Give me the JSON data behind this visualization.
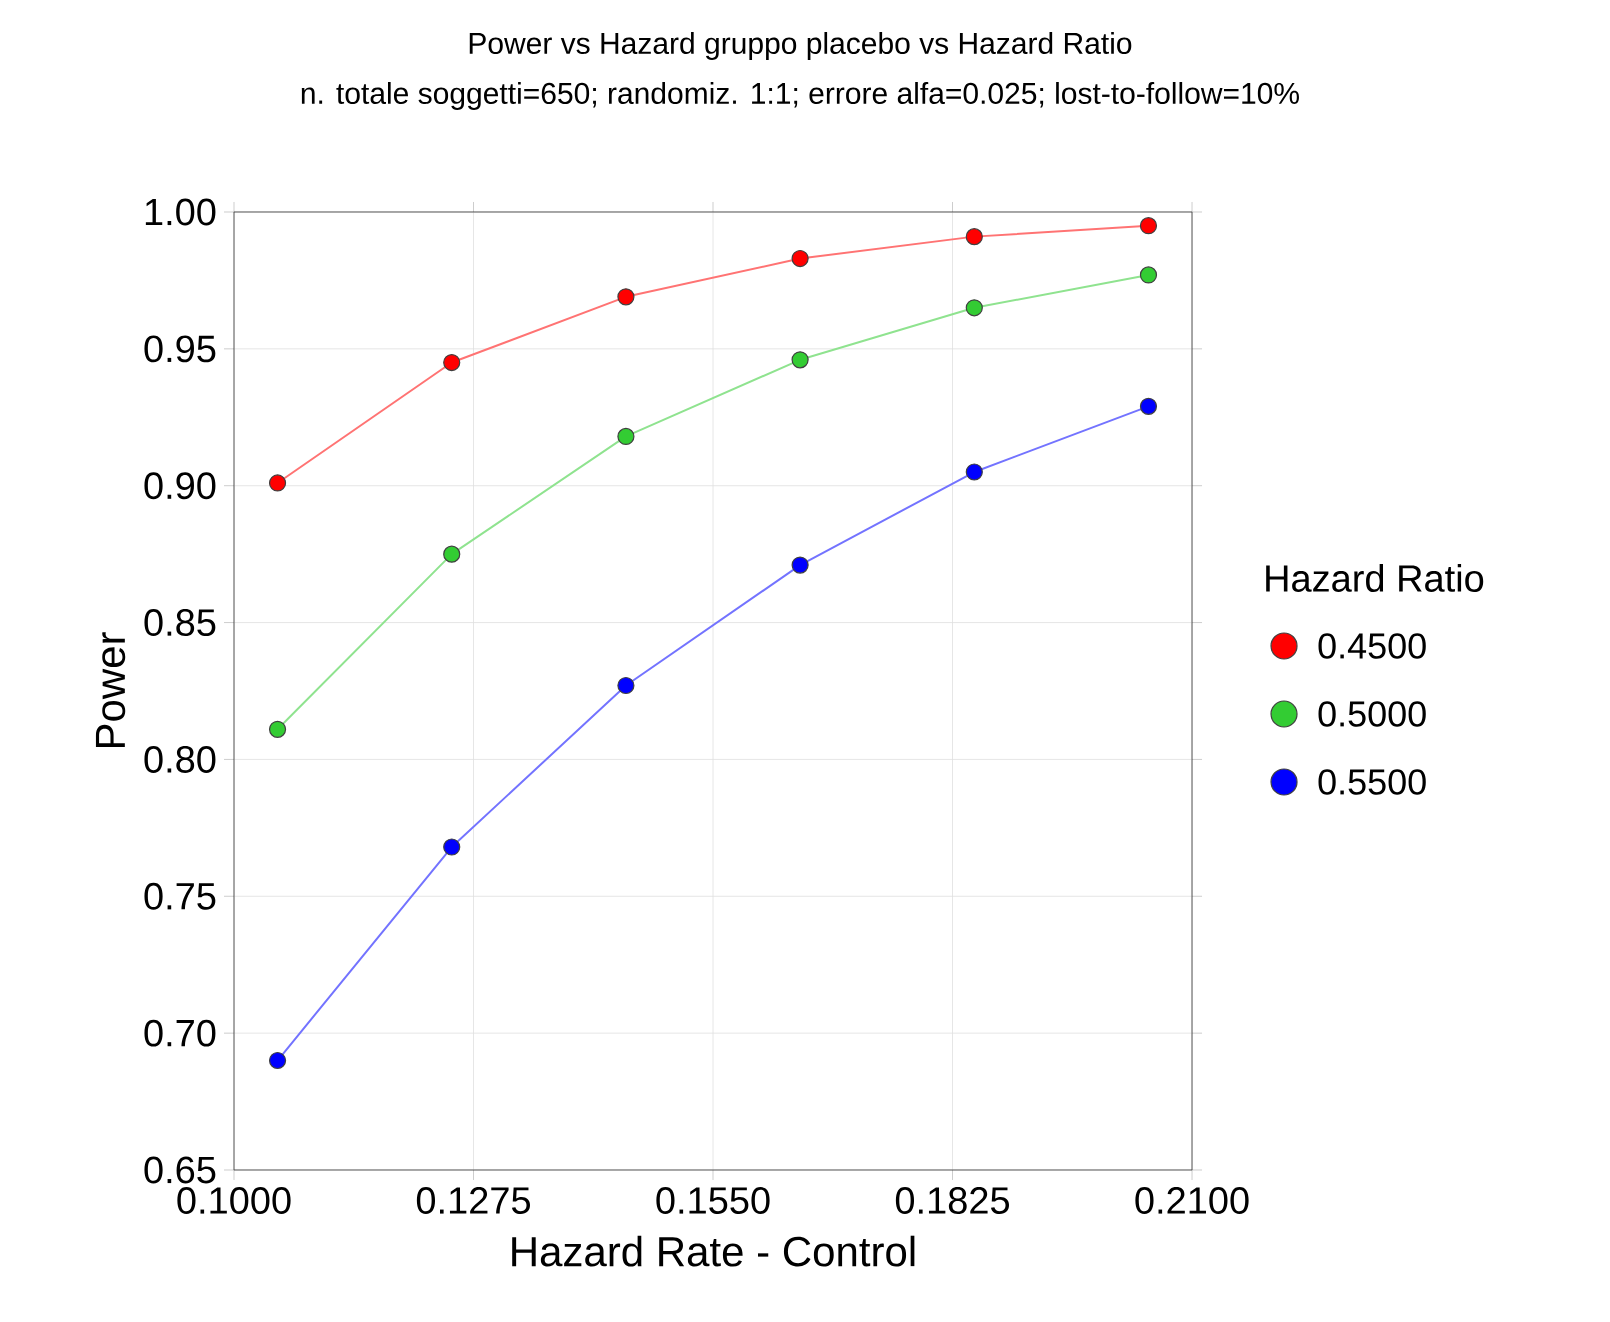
{
  "chart_data": {
    "type": "line",
    "title": "Power vs Hazard gruppo placebo vs Hazard Ratio",
    "subtitle": "n. totale soggetti=650; randomiz. 1:1; errore alfa=0.025; lost-to-follow=10%",
    "xlabel": "Hazard Rate - Control",
    "ylabel": "Power",
    "legend_title": "Hazard Ratio",
    "x": [
      0.105,
      0.125,
      0.145,
      0.165,
      0.185,
      0.205
    ],
    "series": [
      {
        "name": "0.4500",
        "color": "#ff0000",
        "values": [
          0.901,
          0.945,
          0.969,
          0.983,
          0.991,
          0.995
        ]
      },
      {
        "name": "0.5000",
        "color": "#33cc33",
        "values": [
          0.811,
          0.875,
          0.918,
          0.946,
          0.965,
          0.977
        ]
      },
      {
        "name": "0.5500",
        "color": "#0000ff",
        "values": [
          0.69,
          0.768,
          0.827,
          0.871,
          0.905,
          0.929
        ]
      }
    ],
    "xlim": [
      0.1,
      0.21
    ],
    "ylim": [
      0.65,
      1.0
    ],
    "xticks": [
      {
        "value": 0.1,
        "label": "0.1000"
      },
      {
        "value": 0.1275,
        "label": "0.1275"
      },
      {
        "value": 0.155,
        "label": "0.1550"
      },
      {
        "value": 0.1825,
        "label": "0.1825"
      },
      {
        "value": 0.21,
        "label": "0.2100"
      }
    ],
    "yticks": [
      0.65,
      {
        "value": 0.7,
        "label": "0.70"
      },
      0.75,
      {
        "value": 0.8,
        "label": "0.80"
      },
      0.85,
      {
        "value": 0.9,
        "label": "0.90"
      },
      0.95,
      {
        "value": 1.0,
        "label": "1.00"
      }
    ],
    "grid": true,
    "legend": "right",
    "marker": "circle",
    "line_style": "solid"
  }
}
